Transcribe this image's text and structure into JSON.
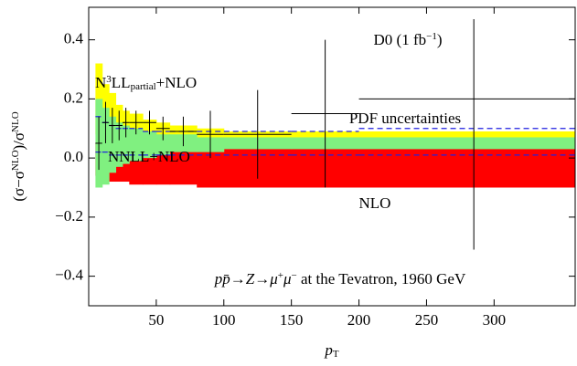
{
  "chart_data": {
    "type": "band-step",
    "x_label": [
      {
        "text": "p",
        "style": "italic"
      },
      {
        "text": "T",
        "style": "sub"
      }
    ],
    "y_label": [
      {
        "text": "(σ−σ"
      },
      {
        "text": "NLO",
        "style": "sup"
      },
      {
        "text": ")/σ"
      },
      {
        "text": "NLO",
        "style": "sup"
      }
    ],
    "xlim": [
      0,
      360
    ],
    "ylim": [
      -0.5,
      0.51
    ],
    "xticks": [
      50,
      100,
      150,
      200,
      250,
      300
    ],
    "yticks": [
      {
        "value": -0.4,
        "label": "−0.4"
      },
      {
        "value": -0.2,
        "label": "−0.2"
      },
      {
        "value": 0,
        "label": "0.0"
      },
      0.2,
      0.4
    ],
    "edges": [
      5,
      10,
      15,
      20,
      25,
      30,
      40,
      50,
      60,
      80,
      100,
      150,
      200,
      360
    ],
    "bands": [
      {
        "name": [
          {
            "text": "NLO"
          }
        ],
        "color": "#ff0000",
        "label_color": "#e00000",
        "hi": [
          0.05,
          0.05,
          0.06,
          0.06,
          0.06,
          0.07,
          0.07,
          0.07,
          0.08,
          0.08,
          0.08,
          0.08,
          0.08
        ],
        "lo": [
          -0.06,
          -0.07,
          -0.08,
          -0.08,
          -0.08,
          -0.09,
          -0.09,
          -0.09,
          -0.09,
          -0.1,
          -0.1,
          -0.1,
          -0.1
        ]
      },
      {
        "name": [
          {
            "text": "N"
          },
          {
            "text": "3",
            "style": "sup"
          },
          {
            "text": "LL"
          },
          {
            "text": "partial",
            "style": "sub"
          },
          {
            "text": "+NLO"
          }
        ],
        "color": "#ffff00",
        "label_color": "#8c8c00",
        "hi": [
          0.32,
          0.25,
          0.22,
          0.18,
          0.16,
          0.15,
          0.13,
          0.12,
          0.11,
          0.1,
          0.09,
          0.09,
          0.09
        ],
        "lo": [
          0.08,
          0.02,
          0.01,
          0.02,
          0.03,
          0.03,
          0.04,
          0.05,
          0.05,
          0.05,
          0.05,
          0.06,
          0.06
        ]
      },
      {
        "name": [
          {
            "text": "NNLL+NLO"
          }
        ],
        "color": "#80f080",
        "label_color": "#2f5f2f",
        "hi": [
          0.2,
          0.17,
          0.14,
          0.12,
          0.11,
          0.1,
          0.09,
          0.08,
          0.08,
          0.07,
          0.07,
          0.07,
          0.07
        ],
        "lo": [
          -0.1,
          -0.09,
          -0.05,
          -0.03,
          -0.02,
          -0.01,
          0,
          0.01,
          0.02,
          0.02,
          0.03,
          0.03,
          0.03
        ]
      }
    ],
    "pdf": {
      "name": [
        {
          "text": "PDF uncertainties"
        }
      ],
      "color": "#2020e0",
      "hi": [
        0.14,
        0.12,
        0.11,
        0.1,
        0.1,
        0.1,
        0.09,
        0.09,
        0.09,
        0.09,
        0.09,
        0.09,
        0.1
      ],
      "lo": [
        0.02,
        0.02,
        0.01,
        0.01,
        0.01,
        0.01,
        0.01,
        0.01,
        0.01,
        0.01,
        0.01,
        0.01,
        0.01
      ]
    },
    "data": {
      "name": [
        {
          "text": "D0 (1 fb"
        },
        {
          "text": "−1",
          "style": "sup"
        },
        {
          "text": ")"
        }
      ],
      "color": "#000000",
      "x": [
        7.5,
        12.5,
        17.5,
        22.5,
        27.5,
        35,
        45,
        55,
        70,
        90,
        125,
        175,
        285
      ],
      "xlo": [
        5,
        10,
        15,
        20,
        25,
        30,
        40,
        50,
        60,
        80,
        100,
        150,
        200
      ],
      "xhi": [
        10,
        15,
        20,
        25,
        30,
        40,
        50,
        60,
        80,
        100,
        150,
        200,
        360
      ],
      "y": [
        0.05,
        0.12,
        0.11,
        0.11,
        0.12,
        0.12,
        0.12,
        0.1,
        0.09,
        0.08,
        0.08,
        0.15,
        0.2
      ],
      "err_lo": [
        0.09,
        0.07,
        0.06,
        0.05,
        0.05,
        0.04,
        0.04,
        0.04,
        0.05,
        0.08,
        0.15,
        0.25,
        0.51
      ],
      "err_hi": [
        0.09,
        0.07,
        0.06,
        0.05,
        0.05,
        0.04,
        0.04,
        0.04,
        0.05,
        0.08,
        0.15,
        0.25,
        0.27
      ]
    },
    "annotation": [
      {
        "text": "p",
        "style": "italic"
      },
      {
        "text": "p̄",
        "style": "italic"
      },
      {
        "text": "→"
      },
      {
        "text": "Z",
        "style": "italic"
      },
      {
        "text": "→"
      },
      {
        "text": "μ",
        "style": "italic"
      },
      {
        "text": "+",
        "style": "sup"
      },
      {
        "text": "μ",
        "style": "italic"
      },
      {
        "text": "−",
        "style": "sup"
      },
      {
        "text": " at the Tevatron, 1960 GeV"
      }
    ]
  }
}
